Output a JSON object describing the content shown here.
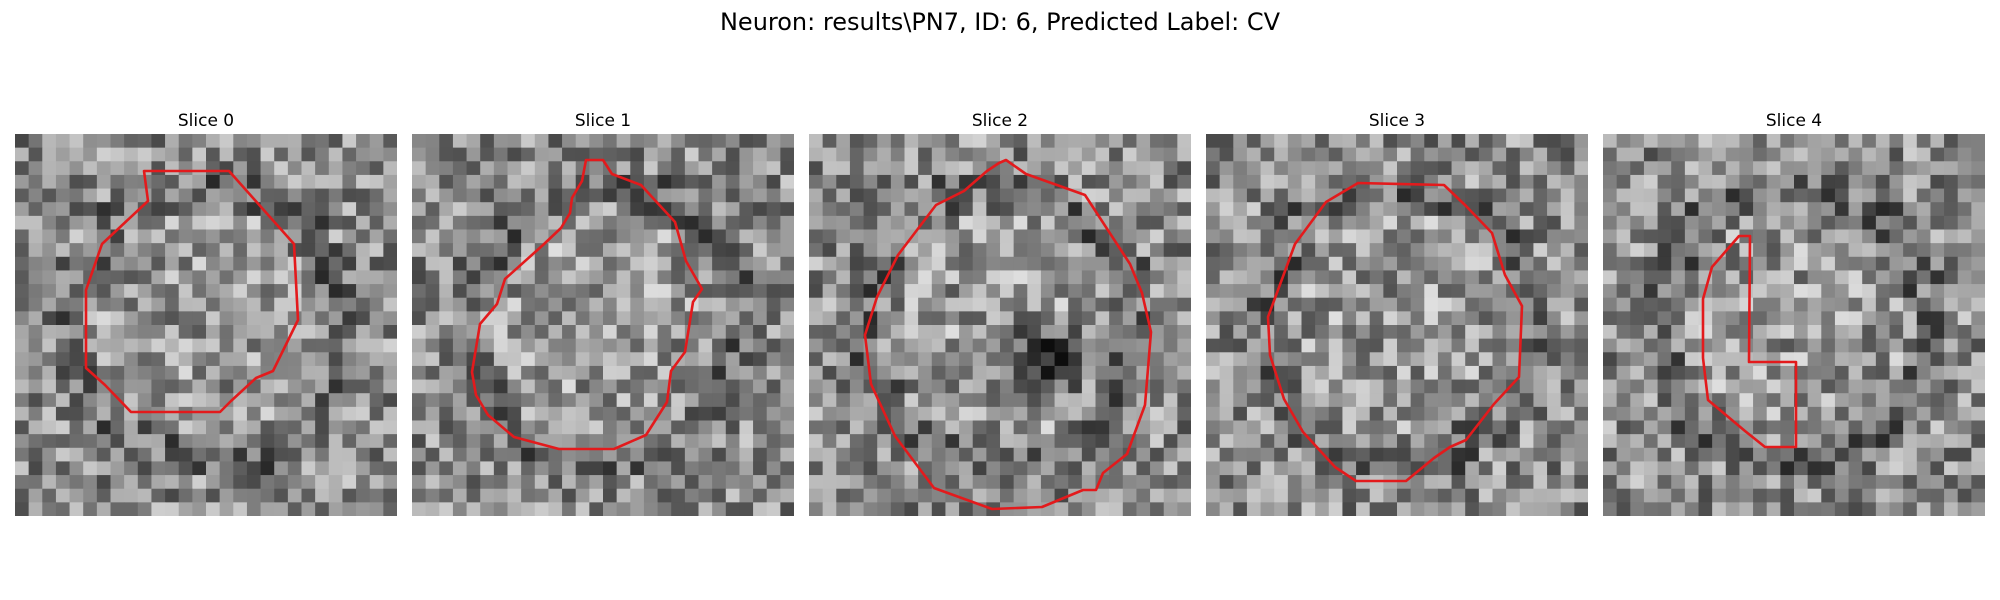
{
  "figure": {
    "title": "Neuron: results\\PN7, ID: 6, Predicted Label: CV",
    "contour_color": "#e31a1c"
  },
  "slices": [
    {
      "title": "Slice 0"
    },
    {
      "title": "Slice 1"
    },
    {
      "title": "Slice 2"
    },
    {
      "title": "Slice 3"
    },
    {
      "title": "Slice 4"
    }
  ]
}
